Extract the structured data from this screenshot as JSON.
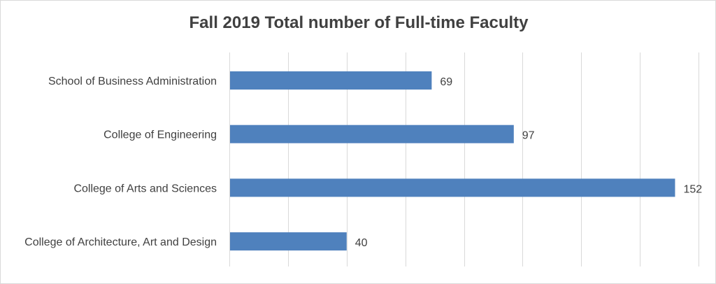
{
  "chart_data": {
    "type": "bar",
    "orientation": "horizontal",
    "title": "Fall 2019 Total number of Full-time Faculty",
    "categories": [
      "School of Business Administration",
      "College of Engineering",
      "College of Arts and Sciences",
      "College of Architecture, Art and Design"
    ],
    "values": [
      69,
      97,
      152,
      40
    ],
    "data_labels": [
      "69",
      "97",
      "152",
      "40"
    ],
    "xlim": [
      0,
      160
    ],
    "x_gridlines": [
      0,
      20,
      40,
      60,
      80,
      100,
      120,
      140,
      160
    ],
    "grid": true,
    "legend": "none",
    "colors": {
      "bar": "#4f81bd",
      "grid": "#d9d9d9",
      "text": "#404040"
    }
  }
}
